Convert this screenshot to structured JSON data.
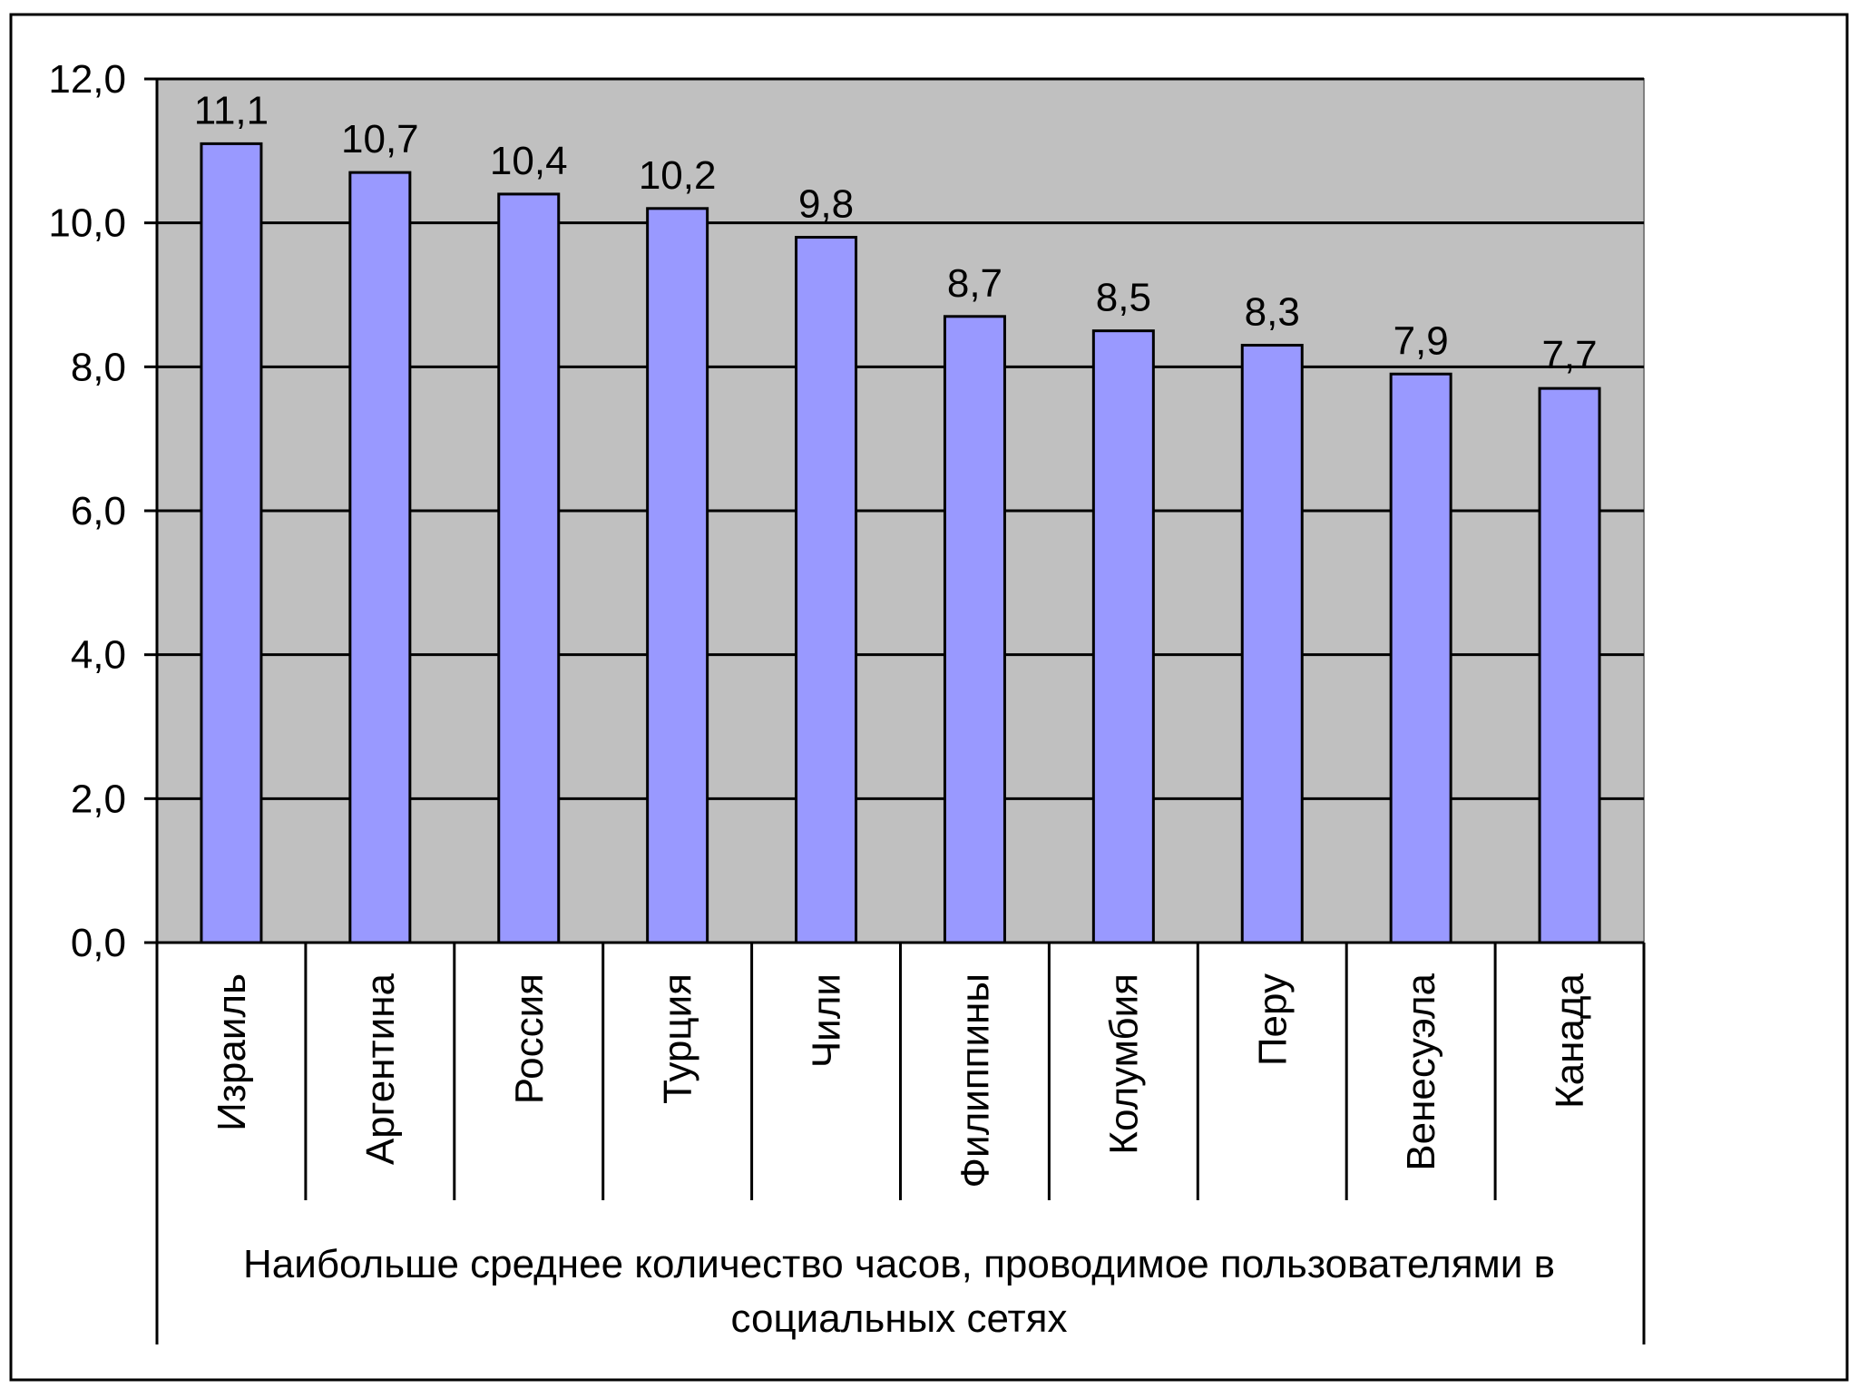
{
  "chart_data": {
    "type": "bar",
    "categories": [
      "Израиль",
      "Аргентина",
      "Россия",
      "Турция",
      "Чили",
      "Филиппины",
      "Колумбия",
      "Перу",
      "Венесуэла",
      "Канада"
    ],
    "values": [
      11.1,
      10.7,
      10.4,
      10.2,
      9.8,
      8.7,
      8.5,
      8.3,
      7.9,
      7.7
    ],
    "value_labels": [
      "11,1",
      "10,7",
      "10,4",
      "10,2",
      "9,8",
      "8,7",
      "8,5",
      "8,3",
      "7,9",
      "7,7"
    ],
    "y_ticks": [
      "0,0",
      "2,0",
      "4,0",
      "6,0",
      "8,0",
      "10,0",
      "12,0"
    ],
    "ylim": [
      0,
      12
    ],
    "xlabel_lines": [
      "Наибольше среднее количество часов, проводимое пользователями в",
      "социальных сетях"
    ],
    "title": "",
    "ylabel": "",
    "grid": true,
    "legend": "none",
    "colors": {
      "bar_fill": "#9999FF",
      "plot_background": "#C0C0C0",
      "gridline": "#000000",
      "outline": "#000000"
    }
  }
}
